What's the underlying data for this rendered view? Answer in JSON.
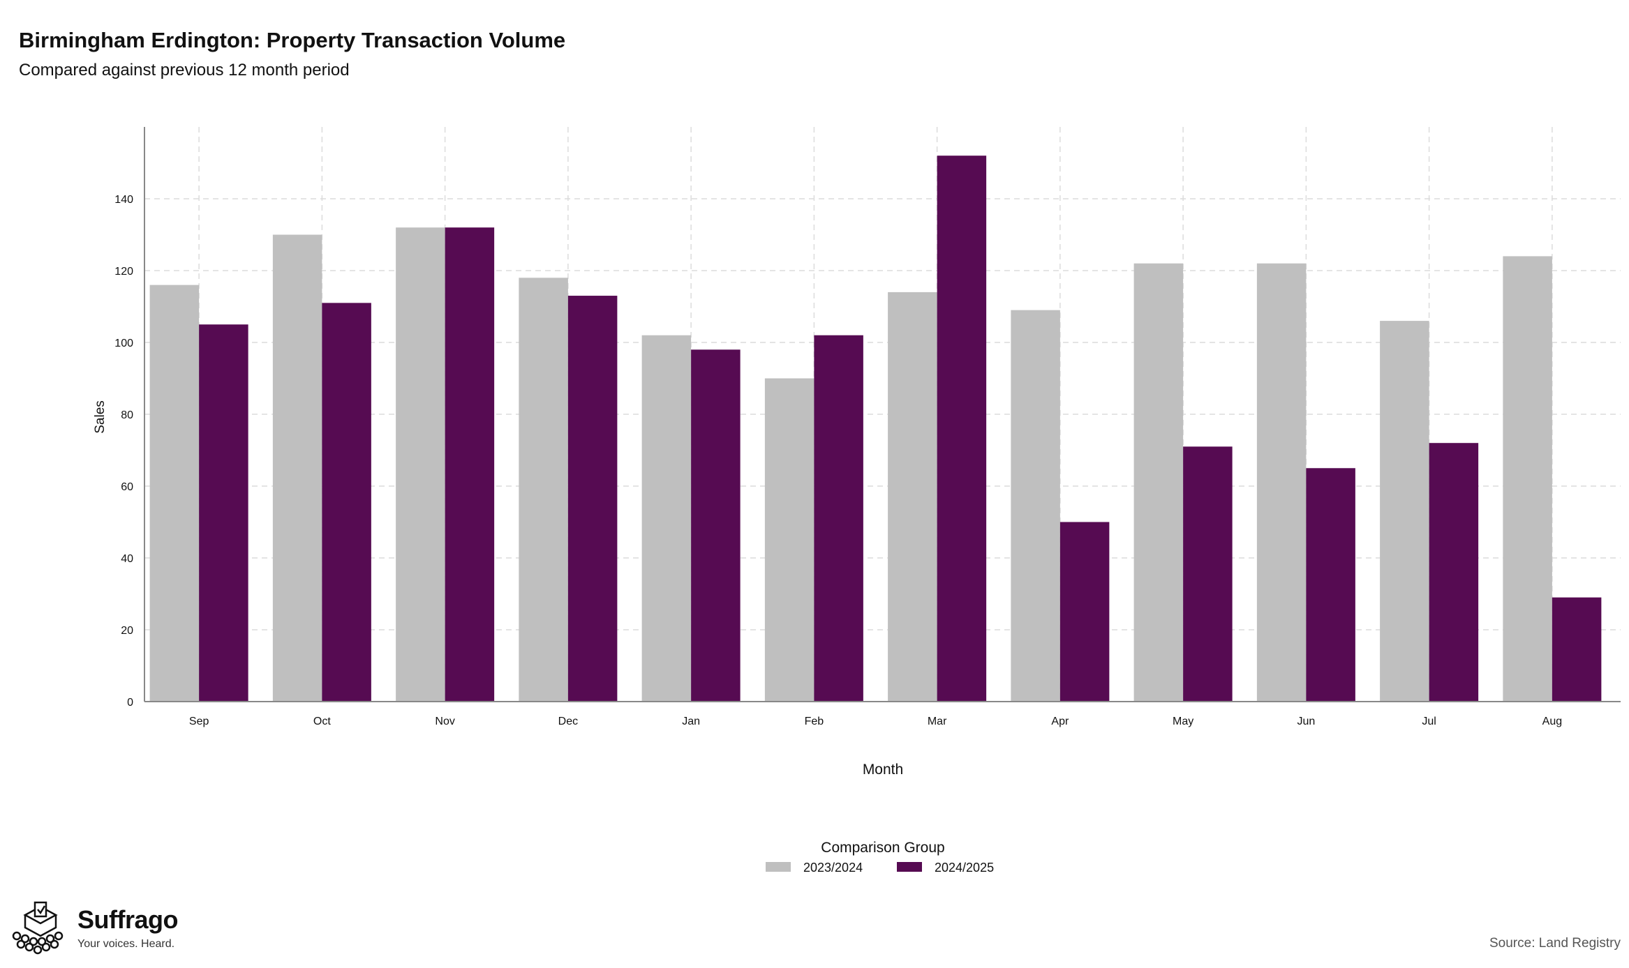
{
  "header": {
    "title": "Birmingham Erdington: Property Transaction Volume",
    "subtitle": "Compared against previous 12 month period"
  },
  "branding": {
    "name": "Suffrago",
    "tagline": "Your voices. Heard.",
    "icon": "ballot-box-crowd-icon"
  },
  "footer": {
    "source": "Source: Land Registry"
  },
  "colors": {
    "series_prev": "#bfbfbf",
    "series_curr": "#560b52",
    "grid": "#dcdcdc",
    "axis": "#888888"
  },
  "chart_data": {
    "type": "bar",
    "xlabel": "Month",
    "ylabel": "Sales",
    "categories": [
      "Sep",
      "Oct",
      "Nov",
      "Dec",
      "Jan",
      "Feb",
      "Mar",
      "Apr",
      "May",
      "Jun",
      "Jul",
      "Aug"
    ],
    "series": [
      {
        "name": "2023/2024",
        "color": "#bfbfbf",
        "values": [
          116,
          130,
          132,
          118,
          102,
          90,
          114,
          109,
          122,
          122,
          106,
          124
        ]
      },
      {
        "name": "2024/2025",
        "color": "#560b52",
        "values": [
          105,
          111,
          132,
          113,
          98,
          102,
          152,
          50,
          71,
          65,
          72,
          29
        ]
      }
    ],
    "ylim": [
      0,
      160
    ],
    "yticks": [
      0,
      20,
      40,
      60,
      80,
      100,
      120,
      140
    ],
    "grid": true,
    "legend": {
      "title": "Comparison Group",
      "position": "bottom-center"
    }
  }
}
